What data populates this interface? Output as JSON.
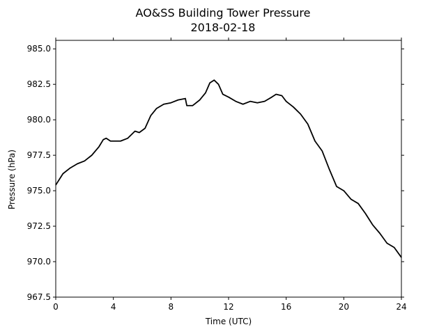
{
  "chart_data": {
    "type": "line",
    "title": "AO&SS Building Tower Pressure",
    "subtitle": "2018-02-18",
    "xlabel": "Time (UTC)",
    "ylabel": "Pressure (hPa)",
    "xlim": [
      0,
      24
    ],
    "ylim": [
      967.5,
      985.6
    ],
    "xticks": [
      0,
      4,
      8,
      12,
      16,
      20,
      24
    ],
    "xtick_labels": [
      "0",
      "4",
      "8",
      "12",
      "16",
      "20",
      "24"
    ],
    "yticks": [
      967.5,
      970.0,
      972.5,
      975.0,
      977.5,
      980.0,
      982.5,
      985.0
    ],
    "ytick_labels": [
      "967.5",
      "970.0",
      "972.5",
      "975.0",
      "977.5",
      "980.0",
      "982.5",
      "985.0"
    ],
    "grid": false,
    "line_color": "#000000",
    "series": [
      {
        "x": [
          0,
          0.5,
          1.0,
          1.5,
          2.0,
          2.5,
          3.0,
          3.3,
          3.5,
          3.8,
          4.0,
          4.5,
          5.0,
          5.5,
          5.8,
          6.2,
          6.6,
          7.0,
          7.5,
          8.0,
          8.5,
          9.0,
          9.1,
          9.5,
          10.0,
          10.4,
          10.7,
          11.0,
          11.3,
          11.6,
          12.0,
          12.5,
          13.0,
          13.5,
          14.0,
          14.5,
          15.0,
          15.3,
          15.7,
          16.0,
          16.5,
          17.0,
          17.5,
          18.0,
          18.5,
          19.0,
          19.5,
          20.0,
          20.5,
          21.0,
          21.5,
          22.0,
          22.5,
          23.0,
          23.5,
          24.0
        ],
        "y": [
          975.4,
          976.2,
          976.6,
          976.9,
          977.1,
          977.5,
          978.1,
          978.6,
          978.7,
          978.5,
          978.5,
          978.5,
          978.7,
          979.2,
          979.1,
          979.4,
          980.3,
          980.8,
          981.1,
          981.2,
          981.4,
          981.5,
          981.0,
          981.0,
          981.4,
          981.9,
          982.6,
          982.8,
          982.5,
          981.8,
          981.6,
          981.3,
          981.1,
          981.3,
          981.2,
          981.3,
          981.6,
          981.8,
          981.7,
          981.3,
          980.9,
          980.4,
          979.7,
          978.5,
          977.8,
          976.5,
          975.3,
          975.0,
          974.4,
          974.1,
          973.4,
          972.6,
          972.0,
          971.3,
          971.0,
          970.3
        ]
      }
    ]
  }
}
